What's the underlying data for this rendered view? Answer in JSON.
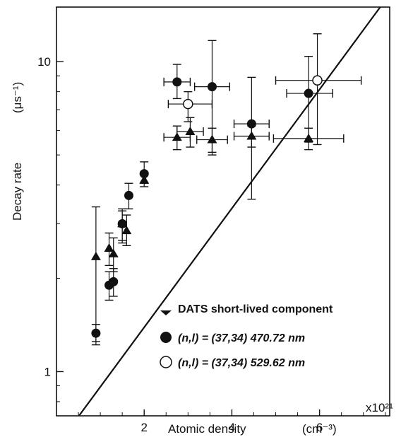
{
  "chart_data": {
    "type": "scatter",
    "xlabel": "Atomic density",
    "xunit": "(cm⁻³)",
    "x_multiplier": "x10²¹",
    "ylabel": "Decay rate",
    "yunit": "(μs⁻¹)",
    "yscale": "log",
    "xlim": [
      0,
      7.6
    ],
    "ylim": [
      0.72,
      15
    ],
    "x_ticks": [
      2,
      4,
      6
    ],
    "x_tick_labels": [
      "2",
      "4",
      "6"
    ],
    "y_ticks": [
      1,
      10
    ],
    "y_tick_labels": [
      "1",
      "10"
    ],
    "grid": false,
    "legend_position": "bottom-right",
    "series": [
      {
        "name": "DATS short-lived component",
        "marker": "filled-triangle",
        "points": [
          {
            "x": 0.9,
            "y": 2.35,
            "ylo": 1.25,
            "yhi": 3.4
          },
          {
            "x": 1.2,
            "y": 2.5,
            "ylo": 2.2,
            "yhi": 2.8
          },
          {
            "x": 1.3,
            "y": 2.4,
            "ylo": 2.1,
            "yhi": 2.7
          },
          {
            "x": 1.5,
            "y": 3.0,
            "ylo": 2.6,
            "yhi": 3.35
          },
          {
            "x": 1.6,
            "y": 2.85,
            "ylo": 2.55,
            "yhi": 3.2
          },
          {
            "x": 2.0,
            "y": 4.15,
            "ylo": 3.95,
            "yhi": 4.4
          },
          {
            "x": 2.75,
            "y": 5.7,
            "ylo": 5.2,
            "yhi": 6.2,
            "xlo": 2.45,
            "xhi": 3.05
          },
          {
            "x": 3.05,
            "y": 5.95,
            "ylo": 5.3,
            "yhi": 6.6,
            "xlo": 2.75,
            "xhi": 3.35
          },
          {
            "x": 3.55,
            "y": 5.6,
            "ylo": 5.1,
            "yhi": 6.1,
            "xlo": 3.2,
            "xhi": 3.9
          },
          {
            "x": 4.45,
            "y": 5.75,
            "ylo": 5.3,
            "yhi": 6.2,
            "xlo": 4.05,
            "xhi": 4.85
          },
          {
            "x": 5.75,
            "y": 5.65,
            "ylo": 5.2,
            "yhi": 6.1,
            "xlo": 4.95,
            "xhi": 6.55
          }
        ]
      },
      {
        "name": "(n,l) = (37,34)   470.72 nm",
        "marker": "filled-circle",
        "points": [
          {
            "x": 0.9,
            "y": 1.33,
            "ylo": 1.22,
            "yhi": 1.42
          },
          {
            "x": 1.2,
            "y": 1.9,
            "ylo": 1.7,
            "yhi": 2.1
          },
          {
            "x": 1.3,
            "y": 1.95,
            "ylo": 1.75,
            "yhi": 2.15
          },
          {
            "x": 1.5,
            "y": 3.0,
            "ylo": 2.65,
            "yhi": 3.3
          },
          {
            "x": 1.65,
            "y": 3.7,
            "ylo": 3.35,
            "yhi": 4.05
          },
          {
            "x": 2.0,
            "y": 4.35,
            "ylo": 4.05,
            "yhi": 4.75
          },
          {
            "x": 2.75,
            "y": 8.6,
            "ylo": 7.6,
            "yhi": 9.8,
            "xlo": 2.45,
            "xhi": 3.05
          },
          {
            "x": 3.55,
            "y": 8.3,
            "ylo": 5.0,
            "yhi": 11.7,
            "xlo": 3.15,
            "xhi": 3.95
          },
          {
            "x": 4.45,
            "y": 6.3,
            "ylo": 3.6,
            "yhi": 8.9,
            "xlo": 4.05,
            "xhi": 4.85
          },
          {
            "x": 5.75,
            "y": 7.9,
            "ylo": 5.5,
            "yhi": 10.4,
            "xlo": 5.25,
            "xhi": 6.3
          }
        ]
      },
      {
        "name": "(n,l) = (37,34)   529.62 nm",
        "marker": "open-circle",
        "points": [
          {
            "x": 3.0,
            "y": 7.3,
            "ylo": 6.4,
            "yhi": 8.0,
            "xlo": 2.55,
            "xhi": 3.55
          },
          {
            "x": 5.95,
            "y": 8.7,
            "ylo": 5.4,
            "yhi": 12.3,
            "xlo": 5.0,
            "xhi": 6.95
          }
        ]
      }
    ],
    "fit_line": {
      "from": {
        "x": 0.1,
        "y": 0.6
      },
      "to": {
        "x": 7.6,
        "y": 16.5
      }
    }
  }
}
